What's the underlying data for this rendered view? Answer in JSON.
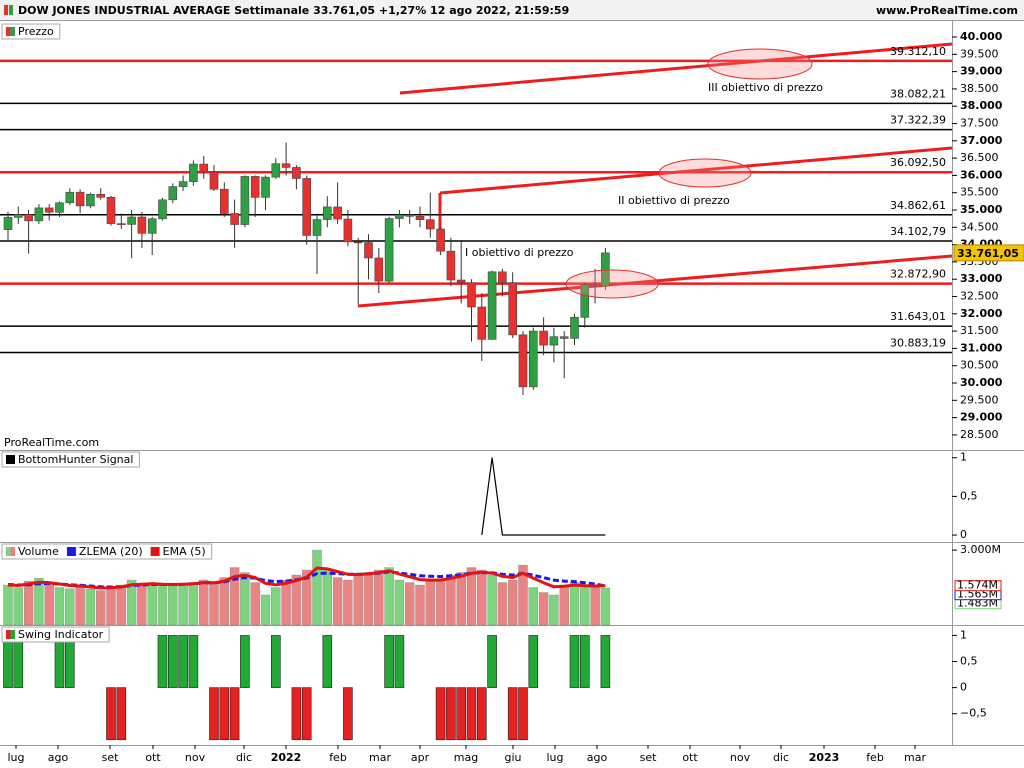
{
  "header": {
    "title": "DOW JONES INDUSTRIAL AVERAGE Settimanale 33.761,05 +1,27% 12 ago 2022, 21:59:59",
    "site": "www.ProRealTime.com",
    "watermark": "ProRealTime.com"
  },
  "time_axis": {
    "labels": [
      "lug",
      "ago",
      "set",
      "ott",
      "nov",
      "dic",
      "2022",
      "feb",
      "mar",
      "apr",
      "mag",
      "giu",
      "lug",
      "ago",
      "set",
      "ott",
      "nov",
      "dic",
      "2023",
      "feb",
      "mar"
    ]
  },
  "chart_data": [
    {
      "type": "candlestick",
      "title": "Prezzo",
      "up_color": "#2ea043",
      "down_color": "#e8312f",
      "opens": [
        34433,
        34786,
        34870,
        34687,
        35061,
        34935,
        35209,
        35515,
        35120,
        35455,
        35369,
        34607,
        34584,
        34798,
        34326,
        34746,
        35295,
        35677,
        35820,
        36328,
        36100,
        35602,
        34899,
        34580,
        35971,
        35365,
        35951,
        36338,
        36231,
        35912,
        34265,
        34725,
        35089,
        34738,
        34079,
        34059,
        33614,
        32944,
        34754,
        34861,
        34818,
        34721,
        34451,
        33811,
        32977,
        32899,
        32197,
        31262,
        33213,
        32900,
        31393,
        29889,
        31501,
        31097,
        31338,
        31289,
        31899,
        32845,
        32803
      ],
      "highs": [
        34950,
        35100,
        35000,
        35170,
        35170,
        35250,
        35630,
        35600,
        35500,
        35630,
        35400,
        34900,
        35000,
        34950,
        34800,
        35350,
        35770,
        36000,
        36430,
        36565,
        36300,
        35800,
        35300,
        36000,
        36000,
        36000,
        36500,
        36952,
        36300,
        36000,
        34900,
        35400,
        35800,
        35000,
        34200,
        34300,
        33900,
        34800,
        35000,
        35000,
        35100,
        35500,
        34500,
        34200,
        34100,
        33000,
        32600,
        33250,
        33300,
        33200,
        31500,
        31600,
        31900,
        31600,
        31500,
        32000,
        32900,
        33300,
        33900
      ],
      "lows": [
        34100,
        34600,
        33740,
        34600,
        34700,
        34800,
        35150,
        34900,
        35050,
        35300,
        34550,
        34450,
        33610,
        33900,
        33700,
        34700,
        35200,
        35550,
        35700,
        35900,
        35550,
        34800,
        33900,
        34500,
        34800,
        35000,
        35900,
        36000,
        35600,
        34000,
        33150,
        34500,
        34600,
        33950,
        32272,
        33000,
        32600,
        32900,
        34500,
        34600,
        34500,
        34200,
        33700,
        32800,
        32300,
        31200,
        30635,
        31250,
        32500,
        31300,
        29653,
        29800,
        30800,
        30600,
        30143,
        31100,
        31600,
        32300,
        32700
      ],
      "closes": [
        34786,
        34870,
        34687,
        35061,
        34935,
        35209,
        35515,
        35120,
        35455,
        35369,
        34607,
        34584,
        34798,
        34326,
        34746,
        35295,
        35677,
        35820,
        36328,
        36100,
        35602,
        34899,
        34580,
        35971,
        35365,
        35951,
        36338,
        36231,
        35912,
        34265,
        34725,
        35089,
        34738,
        34079,
        34059,
        33614,
        32944,
        34754,
        34861,
        34818,
        34721,
        34451,
        33811,
        32977,
        32899,
        32197,
        31262,
        33213,
        32900,
        31393,
        29889,
        31501,
        31097,
        31338,
        31289,
        31899,
        32845,
        32803,
        33761.05
      ],
      "last_price": {
        "value": 33761.05,
        "label": "33.761,05"
      },
      "levels": [
        {
          "value": 39312.1,
          "label": "39.312,10",
          "color": "#ee1c1c"
        },
        {
          "value": 38082.21,
          "label": "38.082,21",
          "color": "#000000"
        },
        {
          "value": 37322.39,
          "label": "37.322,39",
          "color": "#000000"
        },
        {
          "value": 36092.5,
          "label": "36.092,50",
          "color": "#ee1c1c"
        },
        {
          "value": 34862.61,
          "label": "34.862,61",
          "color": "#000000"
        },
        {
          "value": 34102.79,
          "label": "34.102,79",
          "color": "#000000"
        },
        {
          "value": 32872.9,
          "label": "32.872,90",
          "color": "#ee1c1c"
        },
        {
          "value": 31643.01,
          "label": "31.643,01",
          "color": "#000000"
        },
        {
          "value": 30883.19,
          "label": "30.883,19",
          "color": "#000000"
        }
      ],
      "annotations": [
        "III obiettivo di prezzo",
        "II obiettivo di prezzo",
        "I obiettivo di prezzo"
      ],
      "ylim": [
        28064,
        40434
      ],
      "yticks": [
        {
          "value": 40000,
          "label": "40.000"
        },
        {
          "value": 39500,
          "label": "39.500"
        },
        {
          "value": 39000,
          "label": "39.000"
        },
        {
          "value": 38500,
          "label": "38.500"
        },
        {
          "value": 38000,
          "label": "38.000"
        },
        {
          "value": 37500,
          "label": "37.500"
        },
        {
          "value": 37000,
          "label": "37.000"
        },
        {
          "value": 36500,
          "label": "36.500"
        },
        {
          "value": 36000,
          "label": "36.000"
        },
        {
          "value": 35500,
          "label": "35.500"
        },
        {
          "value": 35000,
          "label": "35.000"
        },
        {
          "value": 34500,
          "label": "34.500"
        },
        {
          "value": 34000,
          "label": "34.000"
        },
        {
          "value": 33500,
          "label": "33.500"
        },
        {
          "value": 33000,
          "label": "33.000"
        },
        {
          "value": 32500,
          "label": "32.500"
        },
        {
          "value": 32000,
          "label": "32.000"
        },
        {
          "value": 31500,
          "label": "31.500"
        },
        {
          "value": 31000,
          "label": "31.000"
        },
        {
          "value": 30500,
          "label": "30.500"
        },
        {
          "value": 30000,
          "label": "30.000"
        },
        {
          "value": 29500,
          "label": "29.500"
        },
        {
          "value": 29000,
          "label": "29.000"
        },
        {
          "value": 28500,
          "label": "28.500"
        }
      ]
    },
    {
      "type": "line",
      "title": "BottomHunter Signal",
      "color": "#000000",
      "values": [
        null,
        null,
        null,
        null,
        null,
        null,
        null,
        null,
        null,
        null,
        null,
        null,
        null,
        null,
        null,
        null,
        null,
        null,
        null,
        null,
        null,
        null,
        null,
        null,
        null,
        null,
        null,
        null,
        null,
        null,
        null,
        null,
        null,
        null,
        null,
        null,
        null,
        null,
        null,
        null,
        null,
        null,
        null,
        null,
        null,
        null,
        0,
        1,
        0,
        0,
        0,
        0,
        0,
        0,
        0,
        0,
        0,
        0,
        0
      ],
      "ylim": [
        -0.09,
        1.1
      ],
      "yticks": [
        1,
        {
          "value": 0.5,
          "label": "0,5"
        },
        0
      ]
    },
    {
      "type": "volume",
      "series": [
        {
          "name": "Volume",
          "type": "bar",
          "up_color": "#7ed47e",
          "down_color": "#e88484",
          "last_label": "1.483M",
          "values": [
            1600000,
            1500000,
            1750000,
            1870000,
            1700000,
            1500000,
            1450000,
            1520000,
            1430000,
            1380000,
            1500000,
            1600000,
            1800000,
            1650000,
            1700000,
            1580000,
            1600000,
            1650000,
            1700000,
            1800000,
            1650000,
            1900000,
            2300000,
            2100000,
            1700000,
            1200000,
            1500000,
            1800000,
            2000000,
            2200000,
            3000000,
            2200000,
            1900000,
            1800000,
            2000000,
            2100000,
            2200000,
            2300000,
            1800000,
            1700000,
            1600000,
            1750000,
            1800000,
            2000000,
            2100000,
            2300000,
            2200000,
            2000000,
            1700000,
            1800000,
            2400000,
            1500000,
            1300000,
            1200000,
            1600000,
            1700000,
            1500000,
            1550000,
            1483000
          ]
        },
        {
          "name": "ZLEMA (20)",
          "type": "line",
          "color": "#1a1ae6",
          "dash": true,
          "last_label": "1.565M",
          "values": [
            1620000,
            1600000,
            1610000,
            1650000,
            1660000,
            1640000,
            1610000,
            1590000,
            1560000,
            1530000,
            1520000,
            1530000,
            1580000,
            1600000,
            1620000,
            1620000,
            1620000,
            1630000,
            1650000,
            1690000,
            1690000,
            1730000,
            1840000,
            1900000,
            1880000,
            1780000,
            1740000,
            1760000,
            1810000,
            1880000,
            2060000,
            2080000,
            2060000,
            2030000,
            2030000,
            2050000,
            2080000,
            2130000,
            2080000,
            2030000,
            1970000,
            1950000,
            1940000,
            1970000,
            2010000,
            2080000,
            2100000,
            2090000,
            2030000,
            2000000,
            2070000,
            1990000,
            1900000,
            1800000,
            1760000,
            1740000,
            1690000,
            1640000,
            1565000
          ]
        },
        {
          "name": "EMA (5)",
          "type": "line",
          "color": "#e01414",
          "dash": false,
          "last_label": "1.574M",
          "values": [
            1600000,
            1580000,
            1640000,
            1710000,
            1700000,
            1640000,
            1580000,
            1560000,
            1520000,
            1480000,
            1490000,
            1520000,
            1610000,
            1630000,
            1650000,
            1630000,
            1620000,
            1630000,
            1650000,
            1700000,
            1690000,
            1760000,
            1940000,
            1990000,
            1900000,
            1670000,
            1610000,
            1670000,
            1780000,
            1920000,
            2280000,
            2250000,
            2140000,
            2030000,
            2020000,
            2050000,
            2100000,
            2170000,
            2040000,
            1930000,
            1820000,
            1800000,
            1800000,
            1870000,
            1950000,
            2070000,
            2110000,
            2080000,
            1950000,
            1900000,
            2070000,
            1880000,
            1690000,
            1530000,
            1550000,
            1600000,
            1570000,
            1560000,
            1574000
          ]
        }
      ],
      "ylim": [
        0,
        3324000
      ],
      "yticks": [
        {
          "value": 3000000,
          "label": "3.000M"
        }
      ]
    },
    {
      "type": "bar",
      "title": "Swing Indicator",
      "up_color": "#22a834",
      "down_color": "#e52222",
      "values": [
        1,
        1,
        0,
        0,
        0,
        1,
        1,
        0,
        0,
        0,
        -1,
        -1,
        0,
        0,
        0,
        1,
        1,
        1,
        1,
        0,
        -1,
        -1,
        -1,
        1,
        0,
        0,
        1,
        0,
        -1,
        -1,
        0,
        1,
        0,
        -1,
        0,
        0,
        0,
        1,
        1,
        0,
        0,
        0,
        -1,
        -1,
        -1,
        -1,
        -1,
        1,
        0,
        -1,
        -1,
        1,
        0,
        0,
        0,
        1,
        1,
        0,
        1
      ],
      "ylim": [
        -1.1,
        1.2
      ],
      "yticks": [
        1,
        {
          "value": 0.5,
          "label": "0,5"
        },
        0,
        {
          "value": -0.5,
          "label": "−0,5"
        }
      ]
    }
  ]
}
